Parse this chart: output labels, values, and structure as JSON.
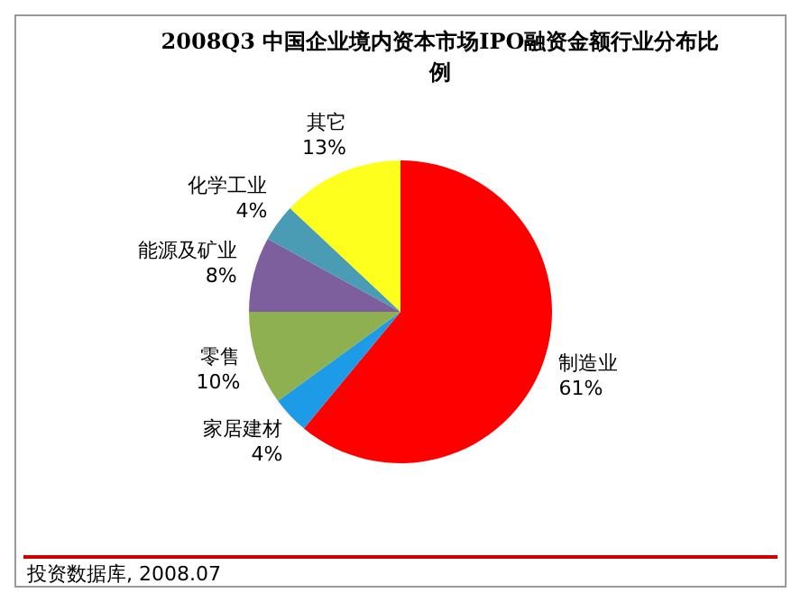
{
  "chart_data": {
    "type": "pie",
    "title": "2008Q3 中国企业境内资本市场IPO融资金额行业分布比例",
    "categories": [
      "制造业",
      "家居建材",
      "零售",
      "能源及矿业",
      "化学工业",
      "其它"
    ],
    "values": [
      61,
      4,
      10,
      8,
      4,
      13
    ],
    "colors": [
      "#ff0000",
      "#1e9be6",
      "#8fb050",
      "#7d5f9e",
      "#4a9cb4",
      "#ffff1e"
    ],
    "value_labels": [
      "61%",
      "4%",
      "10%",
      "8%",
      "4%",
      "13%"
    ],
    "legend": false,
    "annotations": [
      "投资数据库, 2008.07"
    ]
  }
}
